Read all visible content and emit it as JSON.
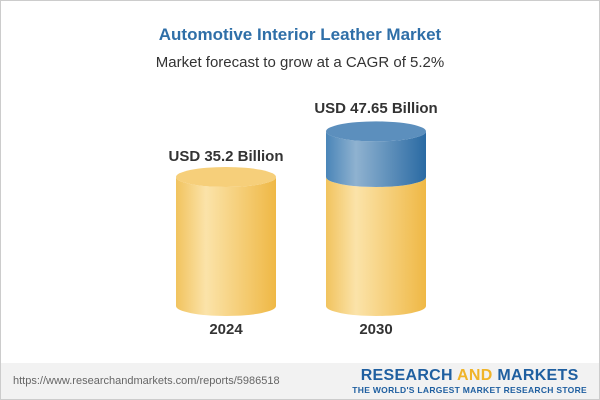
{
  "chart_data": {
    "type": "bar",
    "title": "Automotive Interior Leather Market",
    "subtitle": "Market forecast to grow at a CAGR of 5.2%",
    "categories": [
      "2024",
      "2030"
    ],
    "values": [
      35.2,
      47.65
    ],
    "data_labels": [
      "USD 35.2 Billion",
      "USD 47.65 Billion"
    ],
    "colors": {
      "base": "#f3c15a",
      "growth": "#3f7fb5",
      "title": "#2f6fa8"
    }
  },
  "footer": {
    "url": "https://www.researchandmarkets.com/reports/5986518",
    "logo_part1": "RESEARCH ",
    "logo_part2": "AND",
    "logo_part3": " MARKETS",
    "tagline": "THE WORLD'S LARGEST MARKET RESEARCH STORE"
  }
}
